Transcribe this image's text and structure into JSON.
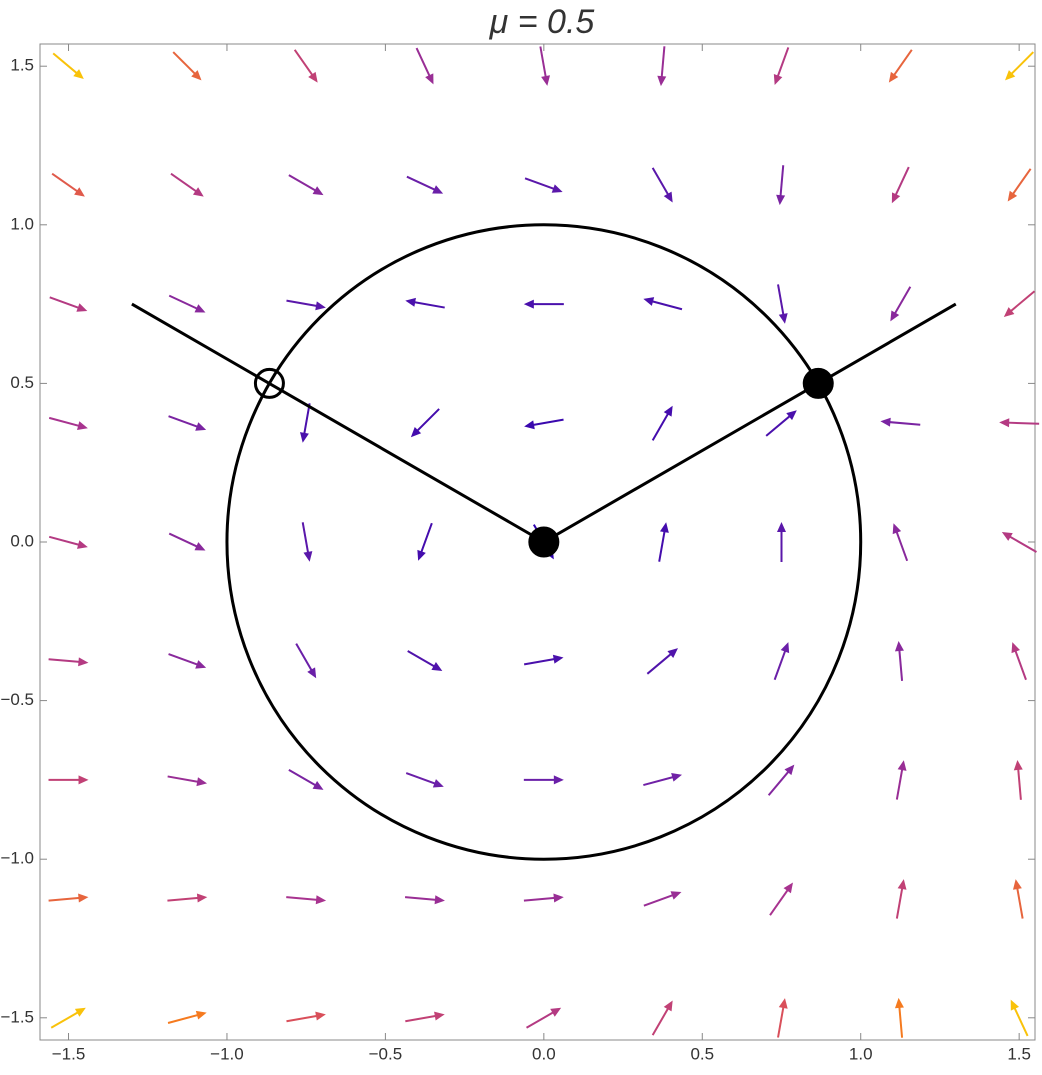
{
  "chart_data": {
    "type": "vector",
    "title": "μ = 0.5",
    "xlim": [
      -1.59,
      1.55
    ],
    "ylim": [
      -1.57,
      1.57
    ],
    "xticks": [
      {
        "value": -1.5,
        "label": "−1.5"
      },
      {
        "value": -1,
        "label": "−1.0"
      },
      {
        "value": -0.5,
        "label": "−0.5"
      },
      {
        "value": 0,
        "label": "0.0"
      },
      0.5,
      {
        "value": 1,
        "label": "1.0"
      },
      1.5
    ],
    "yticks": [
      {
        "value": -1.5,
        "label": "−1.5"
      },
      {
        "value": -1,
        "label": "−1.0"
      },
      {
        "value": -0.5,
        "label": "−0.5"
      },
      {
        "value": 0,
        "label": "0.0"
      },
      0.5,
      {
        "value": 1,
        "label": "1.0"
      },
      1.5
    ],
    "colormap": [
      "#2a00b0",
      "#6a1fa8",
      "#a8338f",
      "#d94f5a",
      "#f57a1f",
      "#f9c20a"
    ],
    "arrows": {
      "x": [
        -1.5,
        -1.125,
        -0.75,
        -0.375,
        0,
        0.375,
        0.75,
        1.125,
        1.5
      ],
      "y": [
        1.5,
        1.125,
        0.75,
        0.375,
        0,
        -0.375,
        -0.75,
        -1.125,
        -1.5
      ],
      "angle": [
        [
          -40,
          -45,
          -55,
          -65,
          -80,
          -95,
          -110,
          -125,
          -135
        ],
        [
          -35,
          -35,
          -30,
          -25,
          -20,
          -60,
          -95,
          -115,
          -125
        ],
        [
          -20,
          -25,
          -10,
          170,
          180,
          165,
          -80,
          -120,
          -140
        ],
        [
          -15,
          -20,
          -100,
          -135,
          190,
          60,
          40,
          175,
          178
        ],
        [
          -15,
          -25,
          -80,
          -110,
          -60,
          80,
          90,
          110,
          150
        ],
        [
          -5,
          -20,
          -60,
          -30,
          10,
          40,
          70,
          95,
          110
        ],
        [
          0,
          -10,
          -30,
          -20,
          0,
          15,
          50,
          80,
          95
        ],
        [
          5,
          5,
          -5,
          -5,
          5,
          20,
          55,
          80,
          100
        ],
        [
          30,
          15,
          10,
          10,
          30,
          60,
          80,
          95,
          115
        ]
      ],
      "magnitude": [
        [
          1,
          0.7,
          0.5,
          0.35,
          0.35,
          0.35,
          0.45,
          0.7,
          1
        ],
        [
          0.65,
          0.45,
          0.3,
          0.2,
          0.15,
          0.15,
          0.25,
          0.45,
          0.7
        ],
        [
          0.45,
          0.3,
          0.15,
          0.1,
          0.1,
          0.1,
          0.15,
          0.3,
          0.5
        ],
        [
          0.4,
          0.25,
          0.1,
          0.08,
          0.05,
          0.08,
          0.1,
          0.25,
          0.45
        ],
        [
          0.45,
          0.3,
          0.15,
          0.08,
          0.02,
          0.08,
          0.15,
          0.3,
          0.45
        ],
        [
          0.45,
          0.3,
          0.2,
          0.12,
          0.1,
          0.12,
          0.2,
          0.3,
          0.45
        ],
        [
          0.5,
          0.35,
          0.25,
          0.2,
          0.2,
          0.22,
          0.28,
          0.35,
          0.5
        ],
        [
          0.7,
          0.5,
          0.4,
          0.35,
          0.35,
          0.35,
          0.4,
          0.5,
          0.7
        ],
        [
          1,
          0.8,
          0.6,
          0.5,
          0.45,
          0.5,
          0.6,
          0.8,
          1
        ]
      ]
    },
    "circle": {
      "center": [
        0,
        0
      ],
      "radius": 1
    },
    "lines": [
      {
        "x": [
          -1.3,
          0,
          1.3
        ],
        "y": [
          0.75,
          0,
          0.75
        ]
      }
    ],
    "fixed_points": [
      {
        "x": 0,
        "y": 0,
        "filled": true
      },
      {
        "x": 0.866,
        "y": 0.5,
        "filled": true
      },
      {
        "x": -0.866,
        "y": 0.5,
        "filled": false
      }
    ]
  }
}
